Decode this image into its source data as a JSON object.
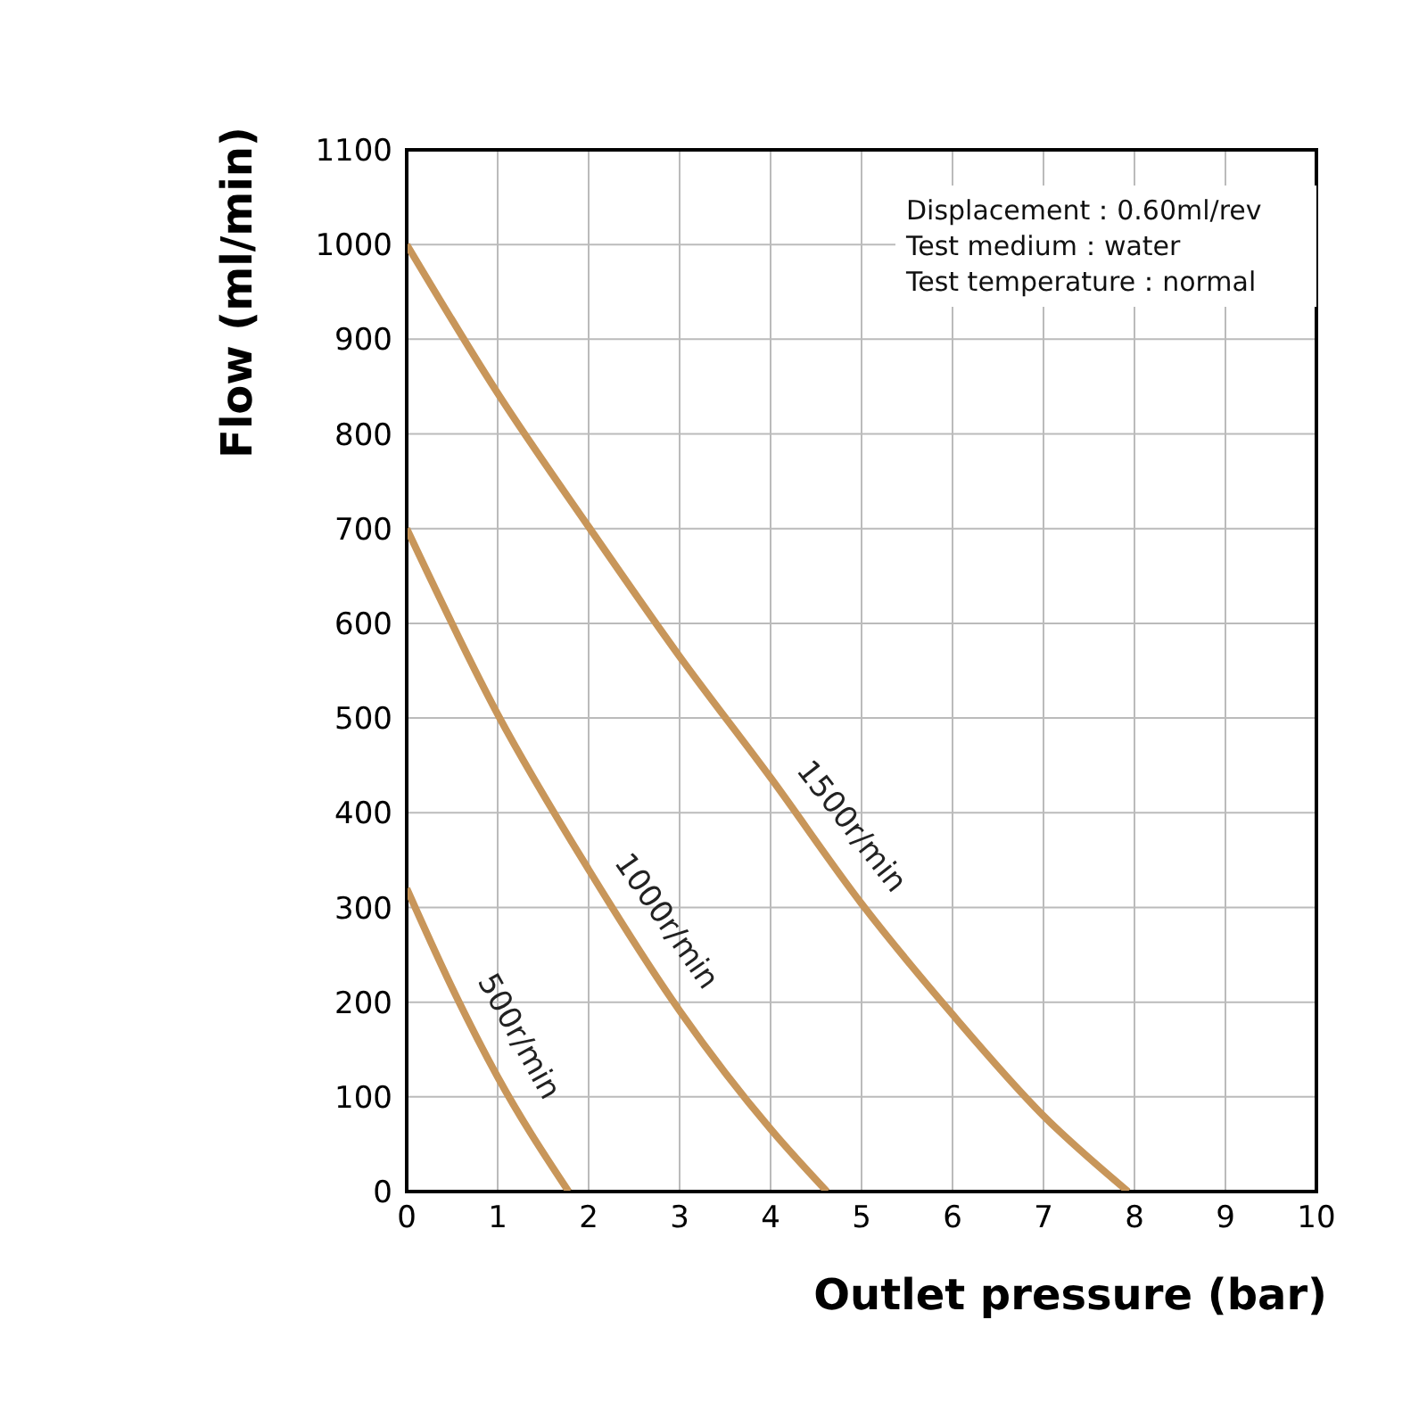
{
  "chart_data": {
    "type": "line",
    "xlabel": "Outlet pressure (bar)",
    "ylabel": "Flow (ml/min)",
    "xlim": [
      0,
      10
    ],
    "ylim": [
      0,
      1100
    ],
    "xticks": [
      0,
      1,
      2,
      3,
      4,
      5,
      6,
      7,
      8,
      9,
      10
    ],
    "yticks": [
      0,
      100,
      200,
      300,
      400,
      500,
      600,
      700,
      800,
      900,
      1000,
      1100
    ],
    "grid": true,
    "annotations": [
      "Displacement：0.60ml/rev",
      "Test medium：water",
      "Test temperature：normal"
    ],
    "series": [
      {
        "name": "1500r/min",
        "color": "#c8965a",
        "x": [
          0,
          1,
          2,
          3,
          4,
          5,
          6,
          7,
          7.93
        ],
        "values": [
          1000,
          843,
          702,
          565,
          437,
          304,
          187,
          80,
          0
        ]
      },
      {
        "name": "1000r/min",
        "color": "#c8965a",
        "x": [
          0,
          1,
          2,
          3,
          4,
          4.62
        ],
        "values": [
          700,
          504,
          340,
          191,
          66,
          0
        ]
      },
      {
        "name": "500r/min",
        "color": "#c8965a",
        "x": [
          0,
          0.5,
          1,
          1.78
        ],
        "values": [
          320,
          215,
          121,
          0
        ]
      }
    ]
  }
}
